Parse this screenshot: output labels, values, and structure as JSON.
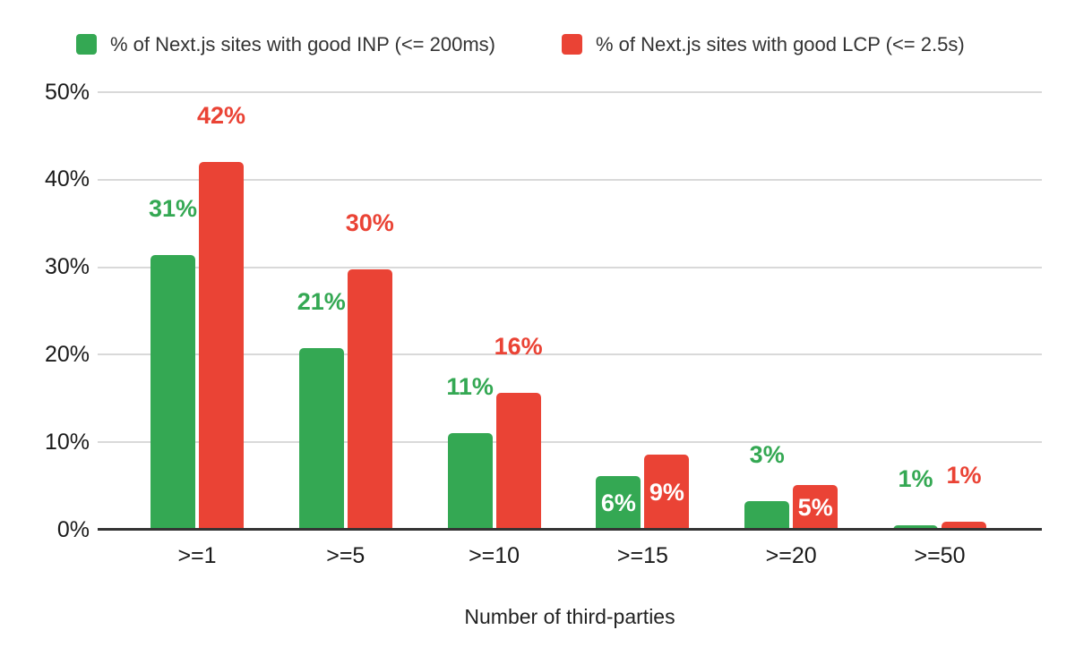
{
  "colors": {
    "inp_green": "#34a853",
    "lcp_red": "#ea4335",
    "gridline": "#d9d9d9",
    "axis_line": "#333333",
    "tick_text": "#1a1a1a",
    "inside_label_white": "#ffffff",
    "background": "#ffffff"
  },
  "legend": {
    "items": [
      {
        "label": "% of Next.js sites with good INP (<= 200ms)",
        "color": "#34a853"
      },
      {
        "label": "% of Next.js sites with good LCP (<= 2.5s)",
        "color": "#ea4335"
      }
    ]
  },
  "chart_data": {
    "type": "bar",
    "title": "",
    "xlabel": "Number of third-parties",
    "ylabel": "",
    "categories": [
      ">=1",
      ">=5",
      ">=10",
      ">=15",
      ">=20",
      ">=50"
    ],
    "y_ticks": [
      "0%",
      "10%",
      "20%",
      "30%",
      "40%",
      "50%"
    ],
    "ylim": [
      0,
      50
    ],
    "grid": true,
    "legend_position": "top",
    "series": [
      {
        "name": "% of Next.js sites with good INP (<= 200ms)",
        "color": "#34a853",
        "values": [
          31,
          21,
          11,
          6,
          3,
          1
        ],
        "labels": [
          "31%",
          "21%",
          "11%",
          "6%",
          "3%",
          "1%"
        ],
        "bar_heights_pct": [
          31.4,
          20.8,
          11.0,
          6.1,
          3.3,
          0.5
        ],
        "label_placement": [
          "above",
          "above",
          "above",
          "inside",
          "above",
          "above"
        ]
      },
      {
        "name": "% of Next.js sites with good LCP (<= 2.5s)",
        "color": "#ea4335",
        "values": [
          42,
          30,
          16,
          9,
          5,
          1
        ],
        "labels": [
          "42%",
          "30%",
          "16%",
          "9%",
          "5%",
          "1%"
        ],
        "bar_heights_pct": [
          42.0,
          29.8,
          15.6,
          8.6,
          5.1,
          0.9
        ],
        "label_placement": [
          "above",
          "above",
          "above",
          "inside",
          "inside",
          "above"
        ]
      }
    ]
  }
}
